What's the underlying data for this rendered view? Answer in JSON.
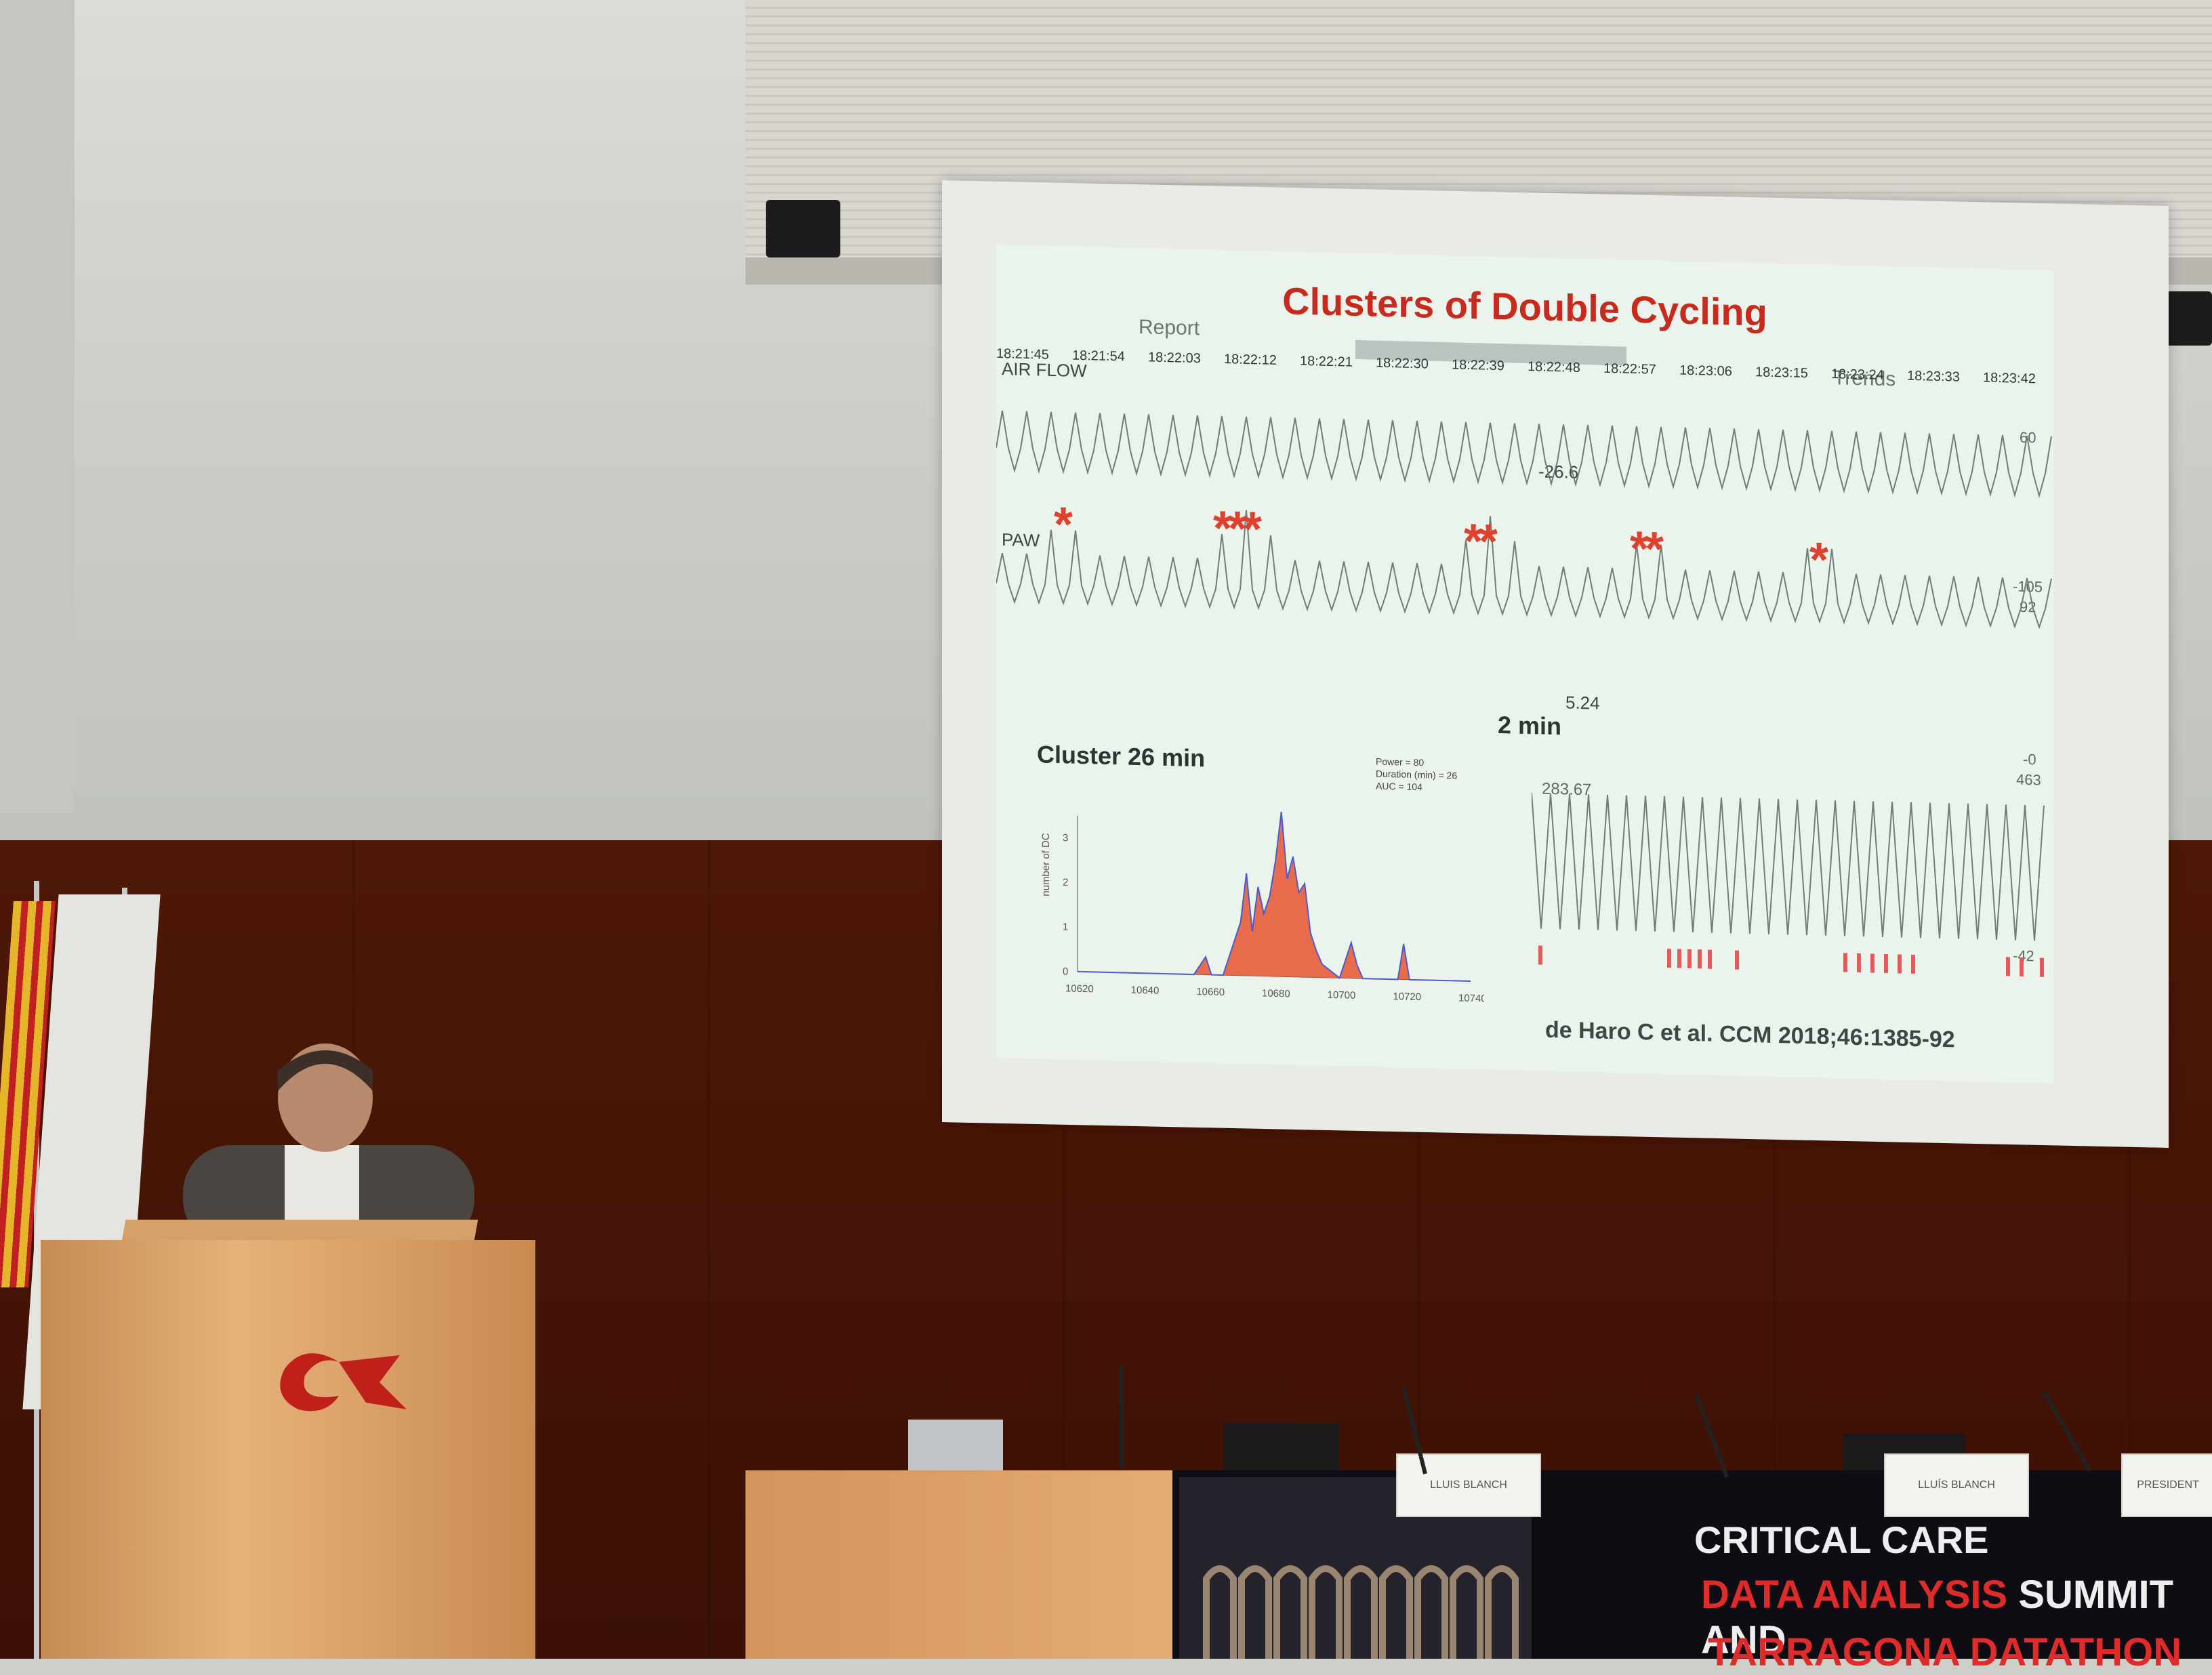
{
  "slide": {
    "title": "Clusters of Double Cycling",
    "tabs": {
      "report": "Report",
      "trends": "Trends"
    },
    "timestamps": [
      "18:21:45",
      "18:21:54",
      "18:22:03",
      "18:22:12",
      "18:22:21",
      "18:22:30",
      "18:22:39",
      "18:22:48",
      "18:22:57",
      "18:23:06",
      "18:23:15",
      "18:23:24",
      "18:23:33",
      "18:23:42"
    ],
    "labels": {
      "air_flow": "AIR FLOW",
      "paw": "PAW",
      "flow_min": "-26.6",
      "flow_right_top": "60",
      "flow_right_bottom": "-105",
      "paw_right_top": "92",
      "paw_min": "5.24",
      "paw_right_bottom": "-0",
      "rhs_value": "283.67",
      "rhs_top": "463",
      "rhs_bottom": "-42"
    },
    "asterisks": [
      "*",
      "***",
      "**",
      "**",
      "*"
    ],
    "two_min": "2 min",
    "cluster_title": "Cluster 26 min",
    "chart_ylabel": "number of DC",
    "legend_lines": [
      "Power = 80",
      "Duration (min) = 26",
      "AUC = 104"
    ],
    "citation": "de Haro C et al. CCM 2018;46:1385-92",
    "colors": {
      "title": "#c82a1e",
      "asterisk": "#e0402e",
      "trace": "#6f7e7a"
    }
  },
  "chart_data": {
    "type": "line",
    "title": "Cluster 26 min",
    "xlabel": "",
    "ylabel": "number of DC",
    "x_ticks": [
      "10620",
      "10640",
      "10660",
      "10680",
      "10700",
      "10720",
      "10740"
    ],
    "y_ticks": [
      "0",
      "1",
      "2",
      "3"
    ],
    "xlim": [
      10610,
      10745
    ],
    "ylim": [
      0,
      3.5
    ],
    "series": [
      {
        "x": [
          10610,
          10650,
          10654,
          10656,
          10660,
          10666,
          10668,
          10670,
          10672,
          10674,
          10676,
          10678,
          10680,
          10682,
          10684,
          10686,
          10688,
          10690,
          10692,
          10694,
          10700,
          10704,
          10706,
          10708,
          10720,
          10722,
          10724,
          10745
        ],
        "values": [
          0,
          0,
          0.4,
          0,
          0,
          1.2,
          2.3,
          1.0,
          2.0,
          1.4,
          1.8,
          2.6,
          3.7,
          2.2,
          2.7,
          1.9,
          2.1,
          1.0,
          0.6,
          0.3,
          0,
          0.8,
          0.3,
          0,
          0,
          0.8,
          0,
          0
        ]
      }
    ]
  },
  "room": {
    "podium_logo_text": "URV",
    "nameplates": [
      "LLUIS BLANCH",
      "LLUÍS BLANCH",
      "PRESIDENT"
    ],
    "banner": {
      "line1": "CRITICAL CARE",
      "line2_red": "DATA ANALYSIS",
      "line2_white": " SUMMIT AND",
      "line3": "TARRAGONA DATATHON"
    }
  }
}
